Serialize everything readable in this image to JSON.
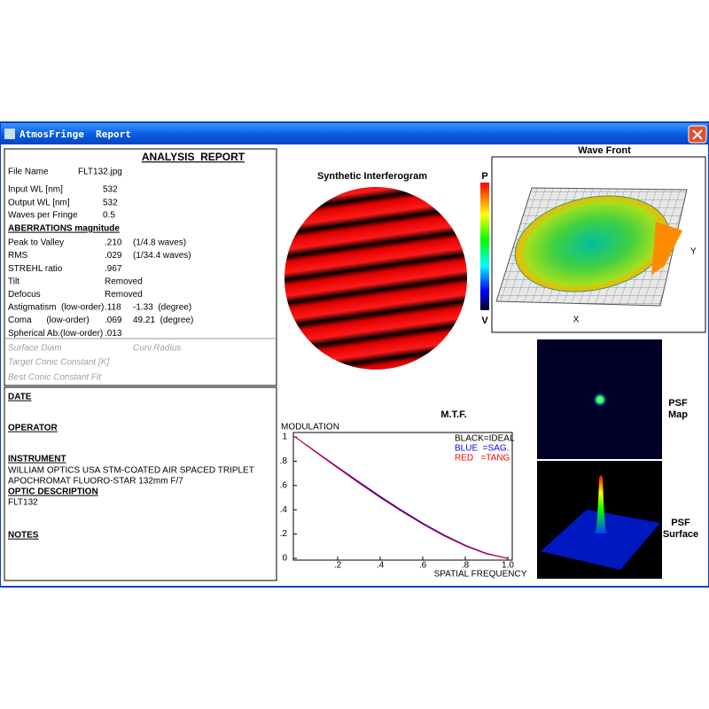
{
  "window": {
    "title": "AtmosFringe  Report"
  },
  "report": {
    "title": "ANALYSIS  REPORT",
    "info": [
      [
        "File Name",
        "FLT132.jpg"
      ],
      [
        "Input WL [nm]",
        "532"
      ],
      [
        "Output WL [nm]",
        "532"
      ],
      [
        "Waves per Fringe",
        "0.5"
      ]
    ],
    "aberrations_title": "ABERRATIONS magnitude",
    "aberrations": [
      [
        "Peak to Valley",
        ".210",
        "(1/4.8 waves)"
      ],
      [
        "RMS",
        ".029",
        "(1/34.4 waves)"
      ],
      [
        "STREHL ratio",
        ".967"
      ],
      [
        "Tilt",
        "Removed"
      ],
      [
        "Defocus",
        "Removed"
      ],
      [
        "Astigmatism  (low-order)",
        ".118",
        "-1.33  (degree)"
      ],
      [
        "Coma      (low-order)",
        ".069",
        "49.21  (degree)"
      ],
      [
        "Spherical Ab.(low-order)",
        ".013"
      ]
    ],
    "surface": [
      "Surface Diam",
      "Curv.Radius",
      "Target Conic Constant [K]",
      "Best Conic Constant Fit"
    ]
  },
  "notes": {
    "date": "DATE",
    "operator": "OPERATOR",
    "instrument": "INSTRUMENT",
    "instrument_text": [
      "WILLIAM OPTICS USA STM-COATED AIR SPACED TRIPLET",
      "APOCHROMAT FLUORO-STAR 132mm F/7"
    ],
    "optic_description": "OPTIC DESCRIPTION",
    "optic_text": "FLT132",
    "notes": "NOTES"
  },
  "interferogram": {
    "title": "Synthetic Interferogram",
    "scale_top": "P",
    "scale_bottom": "V"
  },
  "wavefront": {
    "title": "Wave Front",
    "x_label": "X",
    "y_label": "Y"
  },
  "psf": {
    "map_label": [
      "PSF",
      "Map"
    ],
    "surface_label": [
      "PSF",
      "Surface"
    ]
  },
  "chart_data": {
    "type": "line",
    "title": "M.T.F.",
    "y_label": "MODULATION",
    "x_label": "SPATIAL FREQUENCY",
    "x": [
      0,
      0.1,
      0.2,
      0.3,
      0.4,
      0.5,
      0.6,
      0.7,
      0.8,
      0.9,
      1
    ],
    "series": [
      {
        "name": "BLACK=IDEAL",
        "color": "#000000",
        "values": [
          1,
          0.873,
          0.747,
          0.624,
          0.505,
          0.391,
          0.285,
          0.188,
          0.104,
          0.037,
          0
        ]
      },
      {
        "name": "BLUE  =SAG.",
        "color": "#0000ff",
        "values": [
          1,
          0.876,
          0.752,
          0.63,
          0.511,
          0.397,
          0.29,
          0.193,
          0.108,
          0.04,
          0
        ]
      },
      {
        "name": "RED   =TANG",
        "color": "#ff0000",
        "values": [
          1,
          0.871,
          0.744,
          0.62,
          0.5,
          0.387,
          0.281,
          0.185,
          0.102,
          0.036,
          0
        ]
      }
    ],
    "xlim": [
      0,
      1
    ],
    "ylim": [
      0,
      1
    ],
    "xticks": [
      {
        "value": 0.2,
        "label": ".2"
      },
      {
        "value": 0.4,
        "label": ".4"
      },
      {
        "value": 0.6,
        "label": ".6"
      },
      {
        "value": 0.8,
        "label": ".8"
      },
      {
        "value": 1,
        "label": "1.0"
      }
    ],
    "yticks": [
      0,
      {
        "value": 0.2,
        "label": ".2"
      },
      {
        "value": 0.4,
        "label": ".4"
      },
      {
        "value": 0.6,
        "label": ".6"
      },
      {
        "value": 0.8,
        "label": ".8"
      },
      1
    ]
  }
}
